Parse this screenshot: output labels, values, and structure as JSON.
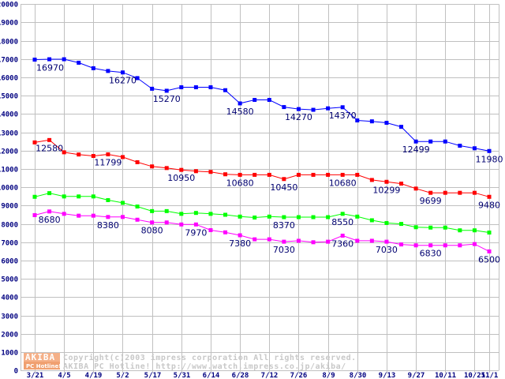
{
  "chart_data": {
    "type": "line",
    "title": "",
    "xlabel": "",
    "ylabel": "",
    "ylim": [
      0,
      20000
    ],
    "ystep": 1000,
    "grid": true,
    "x_ticks": [
      "3/21",
      "4/5",
      "4/19",
      "5/2",
      "5/17",
      "5/31",
      "6/14",
      "6/28",
      "7/12",
      "7/26",
      "8/9",
      "8/30",
      "9/13",
      "9/27",
      "10/11",
      "10/25",
      "11/1"
    ],
    "y_ticks": [
      "0",
      "1000",
      "2000",
      "3000",
      "4000",
      "5000",
      "6000",
      "7000",
      "8000",
      "9000",
      "10000",
      "11000",
      "12000",
      "13000",
      "14000",
      "15000",
      "16000",
      "17000",
      "18000",
      "19000",
      "20000"
    ],
    "series": [
      {
        "name": "blue",
        "color": "#0000ff",
        "values": [
          16970,
          16990,
          16990,
          16800,
          16500,
          16350,
          16270,
          15960,
          15380,
          15270,
          15460,
          15460,
          15460,
          15300,
          14580,
          14770,
          14770,
          14380,
          14270,
          14230,
          14310,
          14370,
          13650,
          13600,
          13520,
          13300,
          12499,
          12499,
          12499,
          12270,
          12130,
          11980
        ],
        "labels": [
          0,
          6,
          9,
          14,
          18,
          21,
          26,
          31
        ]
      },
      {
        "name": "red",
        "color": "#ff0000",
        "values": [
          12450,
          12580,
          11910,
          11790,
          11710,
          11799,
          11650,
          11370,
          11140,
          11050,
          10950,
          10880,
          10840,
          10710,
          10680,
          10680,
          10680,
          10450,
          10680,
          10680,
          10680,
          10680,
          10680,
          10400,
          10299,
          10200,
          9930,
          9699,
          9699,
          9699,
          9699,
          9480
        ],
        "labels": [
          1,
          5,
          10,
          14,
          17,
          21,
          24,
          27,
          31
        ]
      },
      {
        "name": "green",
        "color": "#00ff00",
        "values": [
          9480,
          9680,
          9500,
          9500,
          9500,
          9300,
          9150,
          8950,
          8700,
          8700,
          8550,
          8600,
          8550,
          8500,
          8400,
          8350,
          8400,
          8370,
          8370,
          8370,
          8370,
          8550,
          8400,
          8200,
          8050,
          8000,
          7820,
          7800,
          7800,
          7650,
          7650,
          7530
        ],
        "labels": [
          17,
          21
        ]
      },
      {
        "name": "magenta",
        "color": "#ff00ff",
        "values": [
          8480,
          8680,
          8550,
          8450,
          8450,
          8380,
          8380,
          8230,
          8080,
          8080,
          7970,
          7970,
          7660,
          7540,
          7380,
          7160,
          7160,
          7030,
          7080,
          7000,
          7030,
          7360,
          7080,
          7080,
          7030,
          6880,
          6830,
          6830,
          6830,
          6830,
          6900,
          6500
        ],
        "labels": [
          1,
          5,
          8,
          11,
          14,
          17,
          21,
          24,
          27,
          31
        ]
      }
    ]
  },
  "watermark": {
    "logo_top": "AKIBA",
    "logo_bottom": "PC Hotline!",
    "line1": "Copyright(c)2003 impress corporation All rights reserved.",
    "line2": "AKIBA PC Hotline!  http://www.watch.impress.co.jp/akiba/"
  }
}
